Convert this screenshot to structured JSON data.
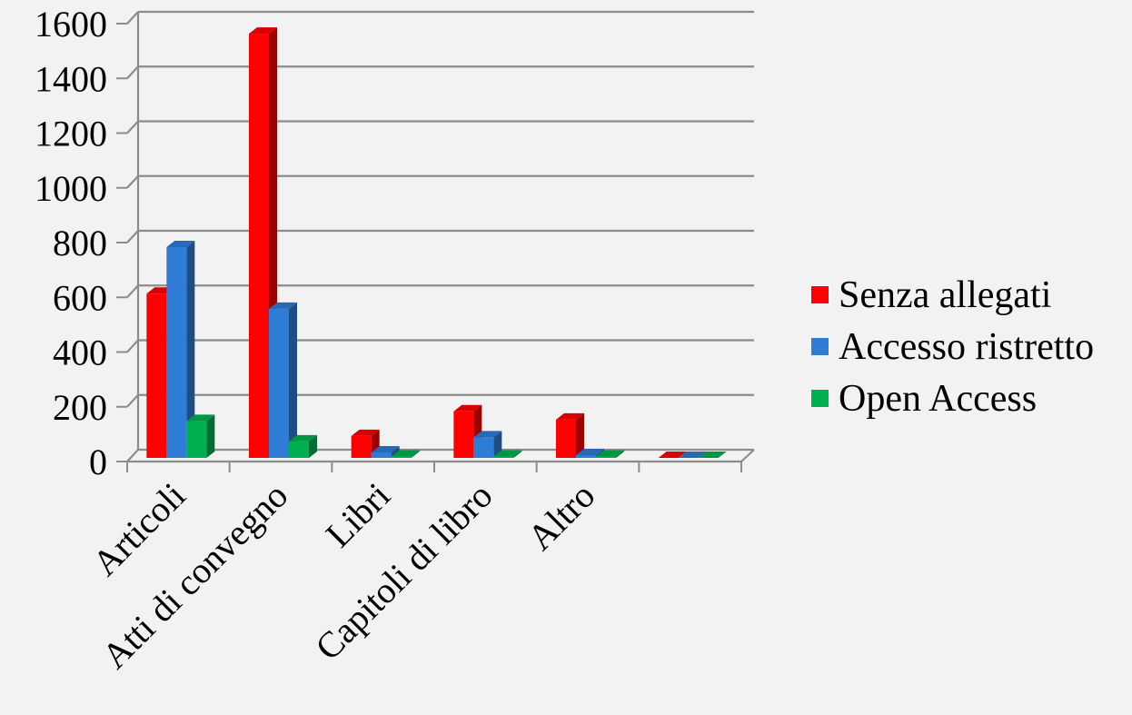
{
  "chart_data": {
    "type": "bar",
    "categories": [
      "Articoli",
      "Atti di convegno",
      "Libri",
      "Capitoli di libro",
      "Altro",
      ""
    ],
    "series": [
      {
        "name": "Senza allegati",
        "color": "#ff0000",
        "values": [
          600,
          1550,
          80,
          170,
          140,
          0
        ]
      },
      {
        "name": "Accesso ristretto",
        "color": "#2e7cd6",
        "values": [
          770,
          545,
          20,
          75,
          10,
          0
        ]
      },
      {
        "name": "Open Access",
        "color": "#00b050",
        "values": [
          135,
          60,
          5,
          5,
          5,
          0
        ]
      }
    ],
    "y_ticks": [
      "0",
      "200",
      "400",
      "600",
      "800",
      "1000",
      "1200",
      "1400",
      "1600"
    ],
    "ylim": [
      0,
      1600
    ],
    "grid": true,
    "legend_position": "right"
  }
}
